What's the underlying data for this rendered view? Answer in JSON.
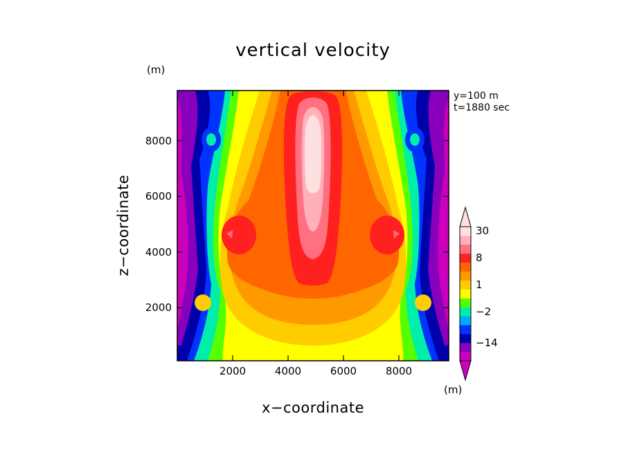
{
  "chart_data": {
    "type": "heatmap",
    "title": "vertical velocity",
    "xlabel": "x−coordinate",
    "ylabel": "z−coordinate",
    "units_z": "(m)",
    "units_colorbar": "(m)",
    "info_lines": [
      "y=100 m",
      "t=1880 sec"
    ],
    "xlim": [
      0,
      9800
    ],
    "ylim": [
      100,
      9800
    ],
    "x_ticks": [
      {
        "value": 2000,
        "label": "2000"
      },
      {
        "value": 4000,
        "label": "4000"
      },
      {
        "value": 6000,
        "label": "6000"
      },
      {
        "value": 8000,
        "label": "8000"
      }
    ],
    "y_ticks": [
      {
        "value": 2000,
        "label": "2000"
      },
      {
        "value": 4000,
        "label": "4000"
      },
      {
        "value": 6000,
        "label": "6000"
      },
      {
        "value": 8000,
        "label": "8000"
      }
    ],
    "colorbar": {
      "colors": [
        "#cc00bb",
        "#8800bb",
        "#0000aa",
        "#0033ff",
        "#00aaff",
        "#00eeaa",
        "#55ff00",
        "#ffff00",
        "#ffcc00",
        "#ff9900",
        "#ff6600",
        "#ff2020",
        "#ff7080",
        "#ffb0b8",
        "#ffe0e0"
      ],
      "tick_labels": [
        {
          "label": "30",
          "index": 14.5
        },
        {
          "label": "8",
          "index": 11.5
        },
        {
          "label": "1",
          "index": 8.5
        },
        {
          "label": "−2",
          "index": 5.5
        },
        {
          "label": "−14",
          "index": 2.0
        }
      ]
    }
  }
}
